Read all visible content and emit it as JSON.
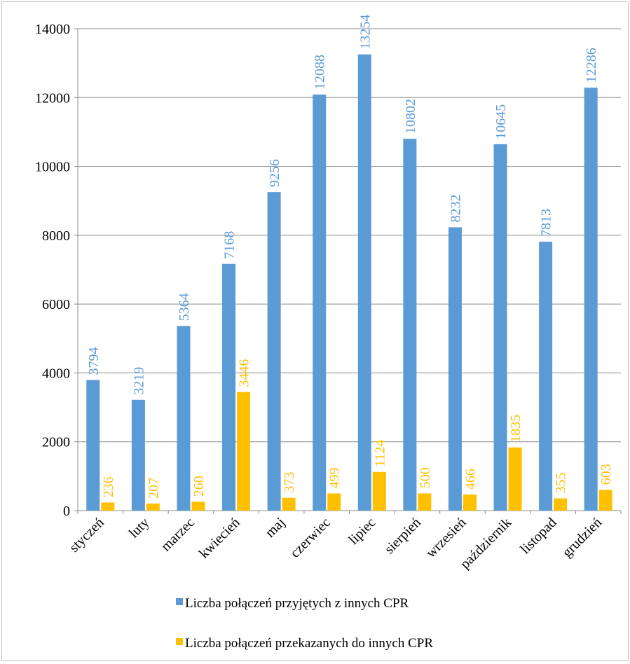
{
  "chart_data": {
    "type": "bar",
    "title": "",
    "xlabel": "",
    "ylabel": "",
    "ylim": [
      0,
      14000
    ],
    "yticks": [
      0,
      2000,
      4000,
      6000,
      8000,
      10000,
      12000,
      14000
    ],
    "grid": true,
    "legend_position": "bottom",
    "categories": [
      "styczeń",
      "luty",
      "marzec",
      "kwiecień",
      "maj",
      "czerwiec",
      "lipiec",
      "sierpień",
      "wrzesień",
      "październik",
      "listopad",
      "grudzień"
    ],
    "series": [
      {
        "name": "Liczba połączeń przyjętych z innych CPR",
        "color": "#5b9bd5",
        "values": [
          3794,
          3219,
          5364,
          7168,
          9256,
          12088,
          13254,
          10802,
          8232,
          10645,
          7813,
          12286
        ]
      },
      {
        "name": "Liczba połączeń przekazanych do innych CPR",
        "color": "#ffc000",
        "values": [
          236,
          207,
          260,
          3446,
          373,
          499,
          1124,
          500,
          466,
          1835,
          355,
          603
        ]
      }
    ]
  }
}
